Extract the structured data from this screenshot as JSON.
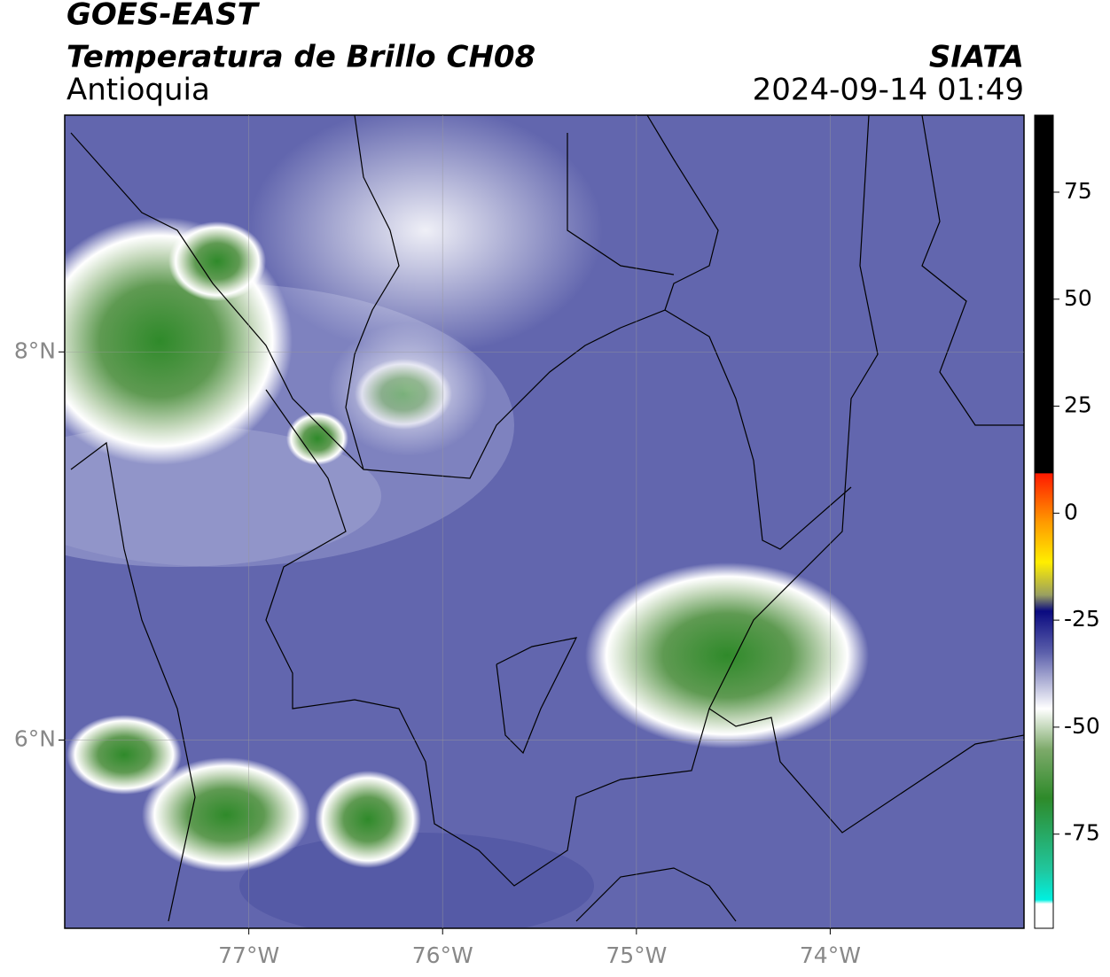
{
  "map": {
    "title": "GOES-EAST",
    "subtitle": "Temperatura de Brillo CH08",
    "region": "Antioquia",
    "source": "SIATA",
    "datetime": "2024-09-14 01:49",
    "xlim": [
      -77.95,
      -73.0
    ],
    "ylim": [
      5.03,
      9.22
    ],
    "xticks": [
      {
        "value": -77,
        "label": "77°W"
      },
      {
        "value": -76,
        "label": "76°W"
      },
      {
        "value": -75,
        "label": "75°W"
      },
      {
        "value": -74,
        "label": "74°W"
      }
    ],
    "yticks": [
      {
        "value": 6,
        "label": "6°N"
      },
      {
        "value": 8,
        "label": "8°N"
      }
    ],
    "colorbar": {
      "clim": [
        -97,
        93
      ],
      "ticks": [
        -75,
        -50,
        -25,
        0,
        25,
        50,
        75
      ]
    }
  }
}
